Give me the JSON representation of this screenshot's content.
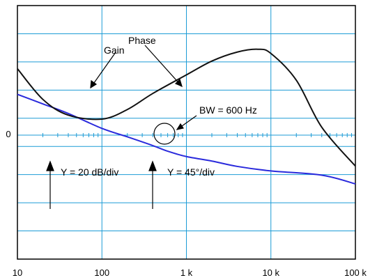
{
  "chart_data": {
    "type": "line",
    "title": "",
    "xlabel": "",
    "ylabel": "",
    "x_scale": "log",
    "xlim": [
      10,
      100000
    ],
    "x_ticks": [
      {
        "value": 10,
        "label": "10"
      },
      {
        "value": 100,
        "label": "100"
      },
      {
        "value": 1000,
        "label": "1 k"
      },
      {
        "value": 10000,
        "label": "10 k"
      },
      {
        "value": 100000,
        "label": "100 k"
      }
    ],
    "y_divisions": 9,
    "zero_division": 4,
    "zero_label": "0",
    "grid": true,
    "series": [
      {
        "name": "Gain",
        "color": "#2a2adc",
        "points": [
          [
            10,
            1.45
          ],
          [
            20,
            1.11
          ],
          [
            40,
            0.77
          ],
          [
            100,
            0.24
          ],
          [
            200,
            -0.06
          ],
          [
            400,
            -0.37
          ],
          [
            600,
            -0.57
          ],
          [
            1000,
            -0.76
          ],
          [
            2000,
            -0.92
          ],
          [
            4000,
            -1.11
          ],
          [
            10000,
            -1.27
          ],
          [
            40000,
            -1.42
          ],
          [
            100000,
            -1.73
          ]
        ]
      },
      {
        "name": "Phase",
        "color": "#111111",
        "points": [
          [
            10,
            2.36
          ],
          [
            20,
            1.27
          ],
          [
            40,
            0.71
          ],
          [
            100,
            0.57
          ],
          [
            200,
            0.91
          ],
          [
            400,
            1.48
          ],
          [
            1000,
            2.14
          ],
          [
            2000,
            2.63
          ],
          [
            4000,
            2.95
          ],
          [
            7000,
            3.05
          ],
          [
            10000,
            2.9
          ],
          [
            20000,
            1.95
          ],
          [
            40000,
            0.28
          ],
          [
            100000,
            -1.1
          ]
        ]
      }
    ],
    "annotations": {
      "gain_label": "Gain",
      "phase_label": "Phase",
      "bandwidth_label": "BW = 600 Hz",
      "gain_scale_label": "Y = 20 dB/div",
      "phase_scale_label": "Y = 45°/div"
    }
  }
}
